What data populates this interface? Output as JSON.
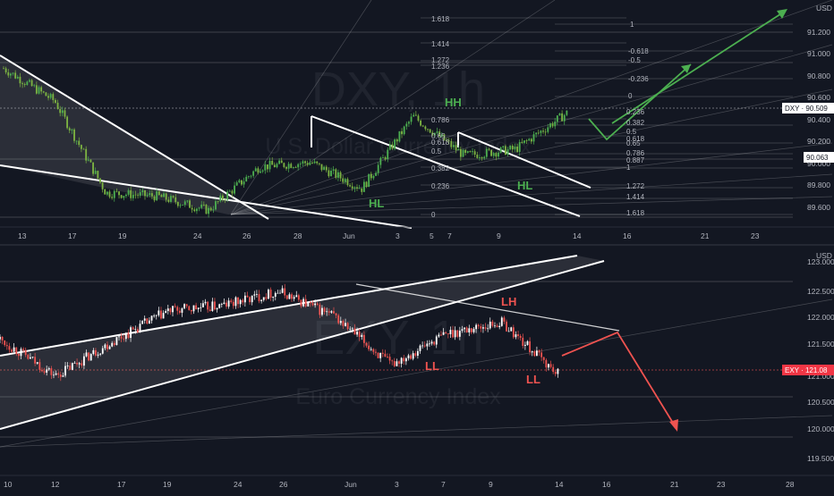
{
  "colors": {
    "background": "#131722",
    "candle_up_top": "#4caf50",
    "candle_up_bottom": "#ffffff",
    "candle_down_bottom": "#ef5350",
    "arrow_green": "#4caf50",
    "arrow_red": "#ef5350",
    "axis_text": "#b2b5be",
    "price_tag_top": "#ffffff",
    "price_tag_bottom": "#f23645"
  },
  "top_panel": {
    "watermark_symbol": "DXY, 1h",
    "watermark_name": "U.S. Dollar Currency Index",
    "unit": "USD",
    "price_ticks": [
      "91.200",
      "91.000",
      "90.800",
      "90.600",
      "90.400",
      "90.200",
      "90.000",
      "89.800",
      "89.600"
    ],
    "last_price_label": "DXY · 90.509",
    "secondary_price_label": "90.063",
    "fib_labels": [
      "1.618",
      "1.414",
      "1.272",
      "1.236",
      "0.786",
      "0.65",
      "0.618",
      "0.5",
      "0.382",
      "0.236",
      "0",
      "1",
      "1.272",
      "1.414",
      "1.618",
      "-0.618",
      "-0.5",
      "-0.236",
      "0",
      "0.236",
      "0.382",
      "0.5",
      "0.618",
      "0.65",
      "0.786",
      "0.887",
      "1",
      "1.272",
      "1.414",
      "1.618"
    ],
    "annotations": [
      "HH",
      "HL",
      "HL"
    ],
    "x_ticks": [
      "13",
      "17",
      "19",
      "24",
      "26",
      "28",
      "Jun",
      "3",
      "5",
      "7",
      "9",
      "14",
      "16",
      "21",
      "23"
    ]
  },
  "bottom_panel": {
    "watermark_symbol": "EXY, 1h",
    "watermark_name": "Euro Currency Index",
    "unit": "USD",
    "price_ticks": [
      "123.000",
      "122.500",
      "122.000",
      "121.500",
      "121.000",
      "120.500",
      "120.000",
      "119.500"
    ],
    "last_price_label": "EXY · 121.08",
    "annotations": [
      "LH",
      "LL",
      "LL"
    ],
    "x_ticks": [
      "10",
      "12",
      "17",
      "19",
      "24",
      "26",
      "Jun",
      "3",
      "7",
      "9",
      "14",
      "16",
      "21",
      "23",
      "28"
    ]
  },
  "chart_data": [
    {
      "type": "line",
      "symbol": "DXY",
      "x": [
        "13",
        "17",
        "19",
        "24",
        "26",
        "28",
        "Jun",
        "3",
        "5",
        "7",
        "9",
        "14"
      ],
      "series": [
        {
          "values": [
            90.92,
            90.62,
            89.78,
            89.75,
            89.62,
            90.02,
            90.06,
            89.82,
            90.48,
            90.12,
            90.18,
            90.51
          ]
        }
      ],
      "ylim": [
        89.5,
        91.3
      ],
      "last_price": 90.509,
      "annotations": [
        {
          "text": "HH",
          "y": 90.48
        },
        {
          "text": "HL",
          "y": 89.72
        },
        {
          "text": "HL",
          "y": 89.95
        }
      ]
    },
    {
      "type": "line",
      "symbol": "EXY",
      "x": [
        "10",
        "12",
        "17",
        "19",
        "24",
        "26",
        "Jun",
        "3",
        "7",
        "9",
        "14"
      ],
      "series": [
        {
          "values": [
            121.7,
            121.05,
            121.65,
            122.2,
            122.3,
            122.55,
            122.1,
            121.25,
            121.8,
            122.0,
            121.08
          ]
        }
      ],
      "ylim": [
        119.35,
        123.2
      ],
      "last_price": 121.08,
      "annotations": [
        {
          "text": "LH",
          "y": 122.2
        },
        {
          "text": "LL",
          "y": 121.2
        },
        {
          "text": "LL",
          "y": 120.95
        }
      ]
    }
  ]
}
